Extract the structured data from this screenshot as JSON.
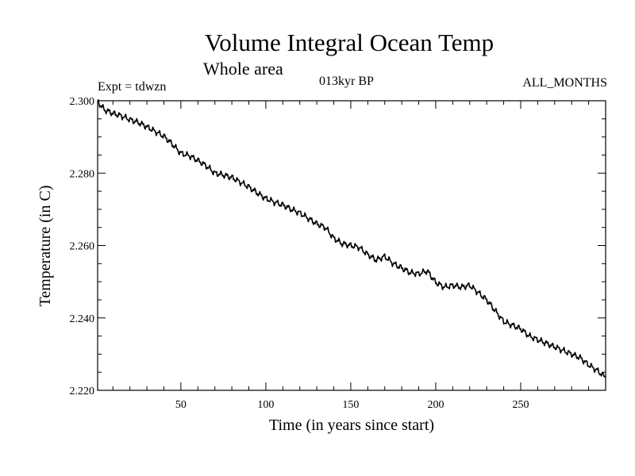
{
  "chart_data": {
    "type": "line",
    "title": "Volume Integral Ocean Temp",
    "subtitle": "Whole area",
    "annotations": {
      "experiment": "Expt = tdwzn",
      "period": "013kyr BP",
      "months": "ALL_MONTHS"
    },
    "xlabel": "Time (in years since start)",
    "ylabel": "Temperature (in C)",
    "xlim": [
      1,
      300
    ],
    "ylim": [
      2.22,
      2.3
    ],
    "x_ticks": [
      50,
      100,
      150,
      200,
      250
    ],
    "x_tick_labels": [
      "50",
      "100",
      "150",
      "200",
      "250"
    ],
    "y_ticks": [
      2.22,
      2.24,
      2.26,
      2.28,
      2.3
    ],
    "y_tick_labels": [
      "2.220",
      "2.240",
      "2.260",
      "2.280",
      "2.300"
    ],
    "grid": false,
    "line_color": "#000000",
    "series": [
      {
        "x": [
          1,
          5,
          10,
          15,
          20,
          25,
          30,
          35,
          40,
          45,
          50,
          55,
          60,
          65,
          70,
          75,
          80,
          85,
          90,
          95,
          100,
          105,
          110,
          115,
          120,
          125,
          130,
          135,
          140,
          145,
          150,
          155,
          160,
          165,
          170,
          175,
          180,
          185,
          190,
          195,
          200,
          205,
          210,
          215,
          220,
          225,
          230,
          235,
          240,
          245,
          250,
          255,
          260,
          265,
          270,
          275,
          280,
          285,
          290,
          295,
          300
        ],
        "values": [
          2.2998,
          2.2975,
          2.2965,
          2.2958,
          2.2948,
          2.294,
          2.2928,
          2.2915,
          2.2902,
          2.288,
          2.2855,
          2.2848,
          2.2835,
          2.282,
          2.28,
          2.2795,
          2.2788,
          2.2775,
          2.2762,
          2.2745,
          2.273,
          2.272,
          2.2712,
          2.27,
          2.269,
          2.2675,
          2.266,
          2.265,
          2.262,
          2.2605,
          2.26,
          2.2595,
          2.2575,
          2.256,
          2.257,
          2.255,
          2.2538,
          2.2525,
          2.2522,
          2.253,
          2.2498,
          2.2485,
          2.249,
          2.2485,
          2.249,
          2.247,
          2.245,
          2.242,
          2.239,
          2.238,
          2.237,
          2.235,
          2.234,
          2.233,
          2.232,
          2.231,
          2.23,
          2.229,
          2.227,
          2.2255,
          2.2235
        ]
      }
    ]
  }
}
